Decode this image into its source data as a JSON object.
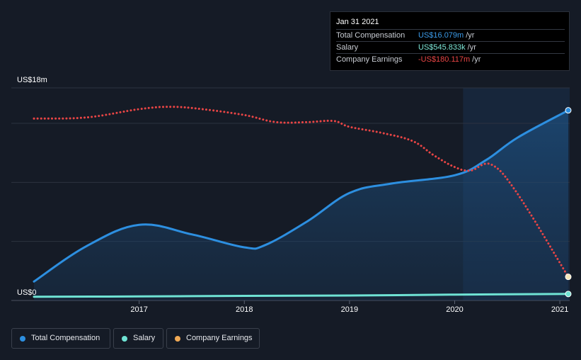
{
  "tooltip": {
    "title": "Jan 31 2021",
    "rows": [
      {
        "label": "Total Compensation",
        "value": "US$16.079m",
        "unit": "/yr",
        "color": "#3b9be8"
      },
      {
        "label": "Salary",
        "value": "US$545.833k",
        "unit": "/yr",
        "color": "#7ee8d8"
      },
      {
        "label": "Company Earnings",
        "value": "-US$180.117m",
        "unit": "/yr",
        "color": "#e84545"
      }
    ]
  },
  "legend": [
    {
      "label": "Total Compensation",
      "color": "#2d8fe0"
    },
    {
      "label": "Salary",
      "color": "#6fe3d4"
    },
    {
      "label": "Company Earnings",
      "color": "#f0a955"
    }
  ],
  "chart_data": {
    "type": "line",
    "y_axis_labels": [
      "US$18m",
      "US$0"
    ],
    "ylim": [
      0,
      18
    ],
    "x_ticks": [
      "2017",
      "2018",
      "2019",
      "2020",
      "2021"
    ],
    "x_tick_values": [
      2017.0,
      2018.0,
      2019.0,
      2020.0,
      2021.0
    ],
    "xlim": [
      2016.0,
      2021.08
    ],
    "grid": true,
    "highlight_from": 2020.08,
    "series": [
      {
        "name": "Total Compensation",
        "color": "#2d8fe0",
        "fill": true,
        "x": [
          2016.0,
          2016.5,
          2017.0,
          2017.5,
          2018.0,
          2018.2,
          2018.6,
          2019.0,
          2019.4,
          2020.0,
          2020.3,
          2020.6,
          2021.08
        ],
        "y": [
          1.6,
          4.6,
          6.4,
          5.6,
          4.5,
          4.7,
          6.7,
          9.1,
          9.9,
          10.6,
          11.9,
          13.8,
          16.1
        ]
      },
      {
        "name": "Salary",
        "color": "#6fe3d4",
        "fill": false,
        "x": [
          2016.0,
          2017.0,
          2018.0,
          2019.0,
          2020.0,
          2021.08
        ],
        "y": [
          0.32,
          0.34,
          0.39,
          0.42,
          0.5,
          0.55
        ]
      },
      {
        "name": "Company Earnings",
        "color": "#e84545",
        "dashed": true,
        "scale_note": "",
        "x": [
          2016.0,
          2016.5,
          2017.0,
          2017.3,
          2017.6,
          2018.0,
          2018.3,
          2018.6,
          2018.85,
          2019.0,
          2019.3,
          2019.6,
          2019.8,
          2020.0,
          2020.15,
          2020.35,
          2020.6,
          2021.08
        ],
        "y": [
          15.4,
          15.5,
          16.2,
          16.4,
          16.2,
          15.7,
          15.1,
          15.1,
          15.2,
          14.7,
          14.2,
          13.5,
          12.3,
          11.3,
          11.0,
          11.5,
          9.0,
          2.0
        ]
      }
    ]
  }
}
